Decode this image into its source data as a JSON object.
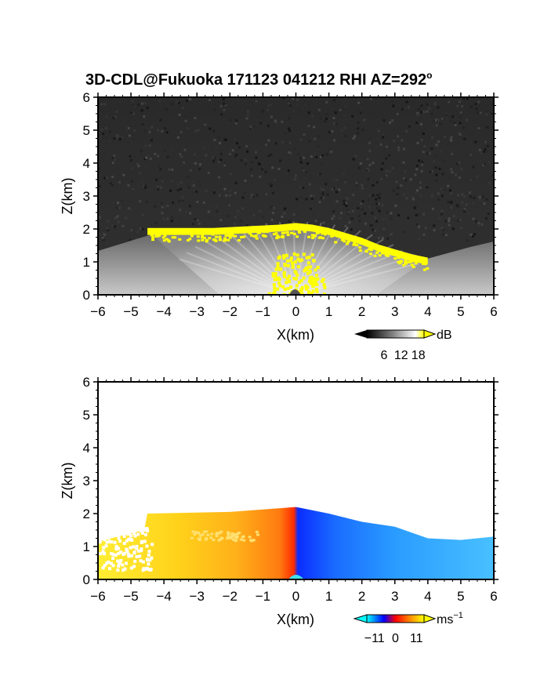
{
  "title": "3D-CDL@Fukuoka 171123 041212 RHI AZ=292",
  "title_degree": "o",
  "chart_data": [
    {
      "type": "heatmap",
      "quantity": "backscatter intensity",
      "xlabel": "X(km)",
      "ylabel": "Z(km)",
      "xlim": [
        -6,
        6
      ],
      "ylim": [
        0,
        6
      ],
      "xticks": [
        "-6",
        "-5",
        "-4",
        "-3",
        "-2",
        "-1",
        "0",
        "1",
        "2",
        "3",
        "4",
        "5",
        "6"
      ],
      "yticks": [
        "0",
        "1",
        "2",
        "3",
        "4",
        "5",
        "6"
      ],
      "colorbar": {
        "unit": "dB",
        "ticks": [
          "6",
          "12",
          "18"
        ],
        "range": [
          0,
          20
        ],
        "colors": [
          "#000000",
          "#808080",
          "#ffffff",
          "#ffff00"
        ]
      },
      "cloud_top_km": [
        {
          "x": -4.5,
          "z": 2.0
        },
        {
          "x": -3.5,
          "z": 2.0
        },
        {
          "x": -2.5,
          "z": 2.0
        },
        {
          "x": -1.5,
          "z": 2.05
        },
        {
          "x": -0.5,
          "z": 2.1
        },
        {
          "x": 0.0,
          "z": 2.15
        },
        {
          "x": 0.5,
          "z": 2.1
        },
        {
          "x": 1.0,
          "z": 2.0
        },
        {
          "x": 1.5,
          "z": 1.85
        },
        {
          "x": 2.0,
          "z": 1.7
        },
        {
          "x": 2.5,
          "z": 1.5
        },
        {
          "x": 3.0,
          "z": 1.35
        },
        {
          "x": 3.5,
          "z": 1.2
        },
        {
          "x": 4.0,
          "z": 1.1
        }
      ]
    },
    {
      "type": "heatmap",
      "quantity": "Doppler velocity",
      "xlabel": "X(km)",
      "ylabel": "Z(km)",
      "xlim": [
        -6,
        6
      ],
      "ylim": [
        0,
        6
      ],
      "xticks": [
        "-6",
        "-5",
        "-4",
        "-3",
        "-2",
        "-1",
        "0",
        "1",
        "2",
        "3",
        "4",
        "5",
        "6"
      ],
      "yticks": [
        "0",
        "1",
        "2",
        "3",
        "4",
        "5",
        "6"
      ],
      "colorbar": {
        "unit": "ms",
        "unit_exponent": "−1",
        "ticks": [
          "−11",
          "0",
          "11"
        ],
        "range": [
          -15,
          15
        ],
        "colors": [
          "#00ffff",
          "#0000ff",
          "#ff0000",
          "#ffff00"
        ]
      },
      "echo_top_km": [
        {
          "x": -6.0,
          "z": 1.15
        },
        {
          "x": -4.6,
          "z": 1.5
        },
        {
          "x": -4.5,
          "z": 2.0
        },
        {
          "x": -2.0,
          "z": 2.05
        },
        {
          "x": 0.0,
          "z": 2.2
        },
        {
          "x": 1.0,
          "z": 2.0
        },
        {
          "x": 2.0,
          "z": 1.75
        },
        {
          "x": 3.0,
          "z": 1.6
        },
        {
          "x": 4.0,
          "z": 1.25
        },
        {
          "x": 5.0,
          "z": 1.2
        },
        {
          "x": 6.0,
          "z": 1.3
        }
      ],
      "velocity_profile": [
        {
          "x": -6,
          "v": 11
        },
        {
          "x": -3,
          "v": 9
        },
        {
          "x": -1,
          "v": 6
        },
        {
          "x": 0,
          "v": 0
        },
        {
          "x": 1,
          "v": -11
        },
        {
          "x": 3,
          "v": -8
        },
        {
          "x": 6,
          "v": -6
        }
      ]
    }
  ]
}
